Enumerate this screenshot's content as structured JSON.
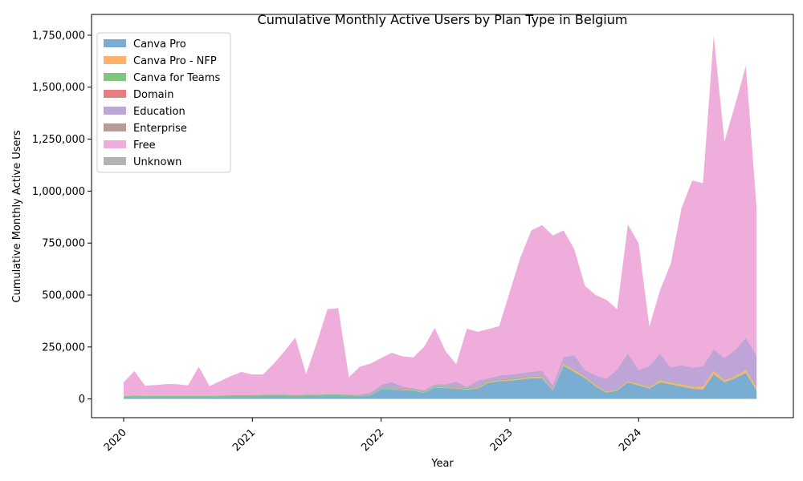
{
  "chart_data": {
    "type": "area",
    "stacked": true,
    "title": "Cumulative Monthly Active Users by Plan Type in Belgium",
    "xlabel": "Year",
    "ylabel": "Cumulative Monthly Active Users",
    "x_tick_labels": [
      "2020",
      "2021",
      "2022",
      "2023",
      "2024"
    ],
    "y_tick_labels": [
      "0",
      "250,000",
      "500,000",
      "750,000",
      "1,000,000",
      "1,250,000",
      "1,500,000",
      "1,750,000"
    ],
    "y_ticks": [
      0,
      250000,
      500000,
      750000,
      1000000,
      1250000,
      1500000,
      1750000
    ],
    "ylim": [
      -90000,
      1850000
    ],
    "grid": false,
    "legend_position": "top-left",
    "x": [
      "2020-01",
      "2020-02",
      "2020-03",
      "2020-04",
      "2020-05",
      "2020-06",
      "2020-07",
      "2020-08",
      "2020-09",
      "2020-10",
      "2020-11",
      "2020-12",
      "2021-01",
      "2021-02",
      "2021-03",
      "2021-04",
      "2021-05",
      "2021-06",
      "2021-07",
      "2021-08",
      "2021-09",
      "2021-10",
      "2021-11",
      "2021-12",
      "2022-01",
      "2022-02",
      "2022-03",
      "2022-04",
      "2022-05",
      "2022-06",
      "2022-07",
      "2022-08",
      "2022-09",
      "2022-10",
      "2022-11",
      "2022-12",
      "2023-01",
      "2023-02",
      "2023-03",
      "2023-04",
      "2023-05",
      "2023-06",
      "2023-07",
      "2023-08",
      "2023-09",
      "2023-10",
      "2023-11",
      "2023-12",
      "2024-01",
      "2024-02",
      "2024-03",
      "2024-04",
      "2024-05",
      "2024-06",
      "2024-07",
      "2024-08",
      "2024-09",
      "2024-10",
      "2024-11",
      "2024-12"
    ],
    "series": [
      {
        "name": "Canva Pro",
        "color": "#1f77b4",
        "values": [
          5000,
          8000,
          6000,
          6000,
          6000,
          6000,
          6000,
          6000,
          6000,
          8000,
          10000,
          10000,
          10000,
          12000,
          12000,
          12000,
          10000,
          12000,
          12000,
          14000,
          14000,
          12000,
          10000,
          15000,
          45000,
          45000,
          42000,
          40000,
          30000,
          55000,
          52000,
          50000,
          45000,
          50000,
          78000,
          85000,
          88000,
          93000,
          100000,
          100000,
          40000,
          160000,
          130000,
          100000,
          60000,
          30000,
          40000,
          80000,
          65000,
          50000,
          80000,
          70000,
          60000,
          50000,
          45000,
          120000,
          80000,
          100000,
          125000,
          40000
        ]
      },
      {
        "name": "Canva Pro - NFP",
        "color": "#ff7f0e",
        "values": [
          0,
          0,
          0,
          0,
          0,
          0,
          0,
          0,
          0,
          0,
          0,
          0,
          0,
          0,
          0,
          0,
          0,
          0,
          0,
          0,
          0,
          0,
          0,
          0,
          2000,
          2000,
          2000,
          2000,
          2000,
          3000,
          3000,
          3000,
          3000,
          3000,
          4000,
          4000,
          4000,
          5000,
          6000,
          6000,
          3000,
          8000,
          8000,
          6000,
          5000,
          4000,
          4000,
          6000,
          6000,
          5000,
          10000,
          8000,
          10000,
          8000,
          15000,
          15000,
          10000,
          8000,
          15000,
          10000
        ]
      },
      {
        "name": "Canva for Teams",
        "color": "#2ca02c",
        "values": [
          8000,
          8000,
          8000,
          8000,
          8000,
          8000,
          8000,
          8000,
          8000,
          8000,
          8000,
          8000,
          8000,
          8000,
          8000,
          8000,
          8000,
          8000,
          8000,
          8000,
          8000,
          8000,
          5000,
          5000,
          5000,
          5000,
          5000,
          5000,
          5000,
          5000,
          5000,
          5000,
          5000,
          5000,
          5000,
          5000,
          5000,
          5000,
          5000,
          5000,
          3000,
          3000,
          3000,
          3000,
          3000,
          3000,
          3000,
          3000,
          3000,
          3000,
          3000,
          3000,
          3000,
          3000,
          3000,
          3000,
          3000,
          3000,
          3000,
          3000
        ]
      },
      {
        "name": "Domain",
        "color": "#d62728",
        "values": [
          0,
          0,
          0,
          0,
          0,
          0,
          0,
          0,
          0,
          0,
          0,
          0,
          0,
          0,
          0,
          0,
          0,
          0,
          0,
          0,
          0,
          0,
          0,
          0,
          0,
          0,
          0,
          0,
          0,
          0,
          0,
          0,
          0,
          0,
          0,
          0,
          0,
          0,
          0,
          0,
          0,
          0,
          0,
          0,
          0,
          0,
          0,
          0,
          0,
          0,
          0,
          0,
          0,
          0,
          0,
          0,
          0,
          0,
          0,
          0
        ]
      },
      {
        "name": "Education",
        "color": "#9467bd",
        "values": [
          0,
          0,
          0,
          0,
          0,
          0,
          0,
          0,
          0,
          0,
          0,
          0,
          0,
          0,
          0,
          0,
          0,
          0,
          0,
          0,
          0,
          0,
          5000,
          10000,
          15000,
          30000,
          10000,
          5000,
          5000,
          7000,
          10000,
          25000,
          5000,
          30000,
          12000,
          18000,
          20000,
          20000,
          20000,
          25000,
          20000,
          30000,
          70000,
          30000,
          45000,
          60000,
          95000,
          130000,
          65000,
          100000,
          125000,
          70000,
          90000,
          90000,
          95000,
          100000,
          105000,
          125000,
          150000,
          155000
        ]
      },
      {
        "name": "Enterprise",
        "color": "#8c564b",
        "values": [
          0,
          0,
          0,
          0,
          0,
          0,
          0,
          0,
          0,
          0,
          0,
          0,
          0,
          0,
          0,
          0,
          0,
          0,
          0,
          0,
          0,
          0,
          0,
          0,
          0,
          0,
          0,
          0,
          0,
          0,
          0,
          0,
          0,
          0,
          0,
          0,
          0,
          0,
          0,
          0,
          0,
          0,
          0,
          0,
          0,
          0,
          0,
          0,
          0,
          0,
          0,
          0,
          0,
          0,
          0,
          0,
          0,
          0,
          0,
          0
        ]
      },
      {
        "name": "Free",
        "color": "#e377c2",
        "values": [
          67000,
          118000,
          50000,
          53000,
          58000,
          57000,
          51000,
          141000,
          48000,
          70000,
          92000,
          112000,
          100000,
          98000,
          150000,
          210000,
          277000,
          100000,
          250000,
          410000,
          415000,
          85000,
          135000,
          140000,
          130000,
          140000,
          146000,
          148000,
          208000,
          272000,
          160000,
          85000,
          280000,
          235000,
          237000,
          238000,
          400000,
          560000,
          680000,
          700000,
          720000,
          610000,
          510000,
          405000,
          387000,
          380000,
          290000,
          620000,
          610000,
          190000,
          305000,
          500000,
          755000,
          900000,
          880000,
          1510000,
          1040000,
          1180000,
          1310000,
          710000
        ]
      },
      {
        "name": "Unknown",
        "color": "#7f7f7f",
        "values": [
          0,
          0,
          0,
          0,
          0,
          0,
          0,
          0,
          0,
          0,
          0,
          0,
          0,
          0,
          0,
          0,
          0,
          0,
          0,
          0,
          0,
          0,
          0,
          0,
          0,
          0,
          0,
          0,
          0,
          0,
          0,
          0,
          0,
          0,
          0,
          0,
          0,
          0,
          0,
          0,
          0,
          0,
          0,
          0,
          0,
          0,
          0,
          0,
          0,
          0,
          0,
          0,
          0,
          0,
          0,
          0,
          0,
          0,
          0,
          0
        ]
      }
    ]
  }
}
